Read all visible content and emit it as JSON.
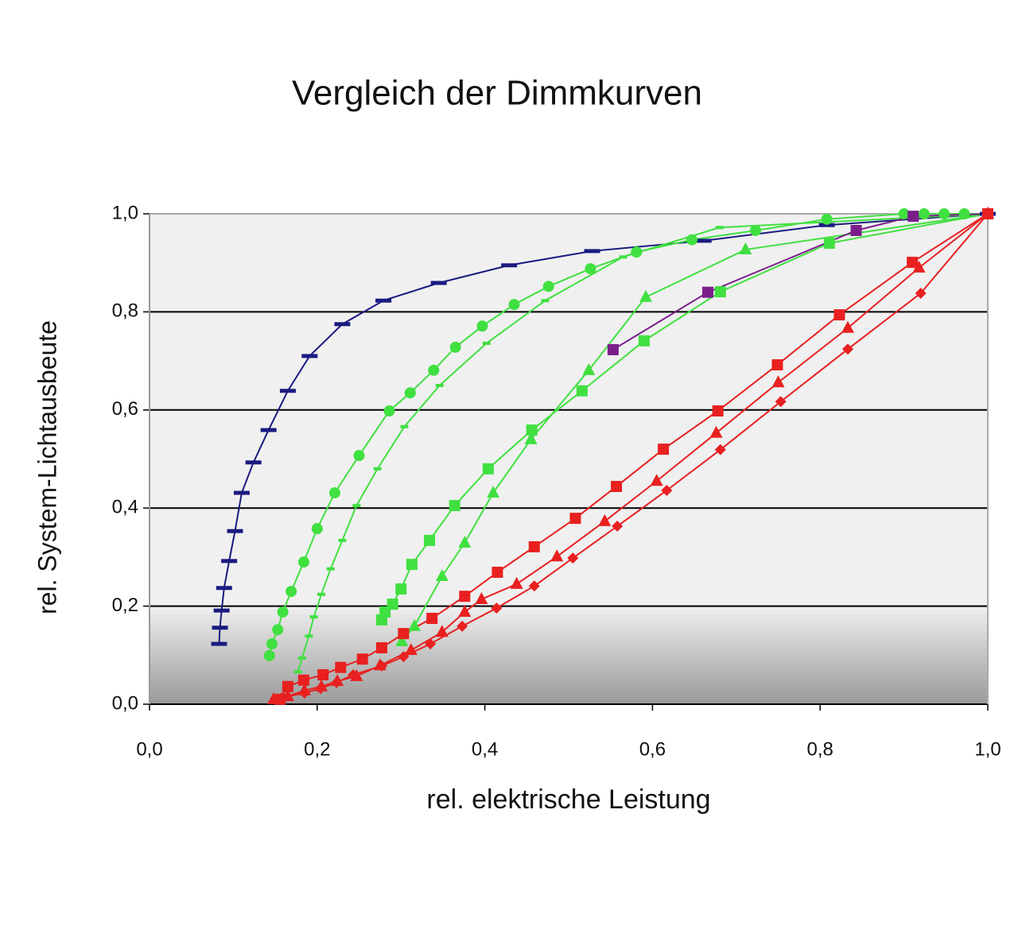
{
  "chart_data": {
    "type": "line",
    "title": "Vergleich der Dimmkurven",
    "x_label": "rel. elektrische Leistung",
    "y_label": "rel. System-Lichtausbeute",
    "xlim": [
      0,
      1
    ],
    "ylim": [
      0,
      1
    ],
    "xticks": [
      {
        "value": 0,
        "label": "0,0"
      },
      {
        "value": 0.2,
        "label": "0,2"
      },
      {
        "value": 0.4,
        "label": "0,4"
      },
      {
        "value": 0.6,
        "label": "0,6"
      },
      {
        "value": 0.8,
        "label": "0,8"
      },
      {
        "value": 1,
        "label": "1,0"
      }
    ],
    "yticks": [
      {
        "value": 0,
        "label": "0,0"
      },
      {
        "value": 0.2,
        "label": "0,2"
      },
      {
        "value": 0.4,
        "label": "0,4"
      },
      {
        "value": 0.6,
        "label": "0,6"
      },
      {
        "value": 0.8,
        "label": "0,8"
      },
      {
        "value": 1,
        "label": "1,0"
      }
    ],
    "grid": true,
    "series": [
      {
        "color": "#1a1a80",
        "marker": "dash",
        "x": [
          0.083,
          0.084,
          0.086,
          0.089,
          0.095,
          0.102,
          0.11,
          0.124,
          0.142,
          0.165,
          0.191,
          0.23,
          0.279,
          0.345,
          0.429,
          0.528,
          0.661,
          0.808,
          1.0
        ],
        "values": [
          0.123,
          0.156,
          0.191,
          0.237,
          0.292,
          0.353,
          0.431,
          0.493,
          0.559,
          0.639,
          0.71,
          0.775,
          0.823,
          0.859,
          0.895,
          0.924,
          0.945,
          0.977,
          1.0
        ]
      },
      {
        "color": "#40e040",
        "marker": "circle",
        "x": [
          0.143,
          0.146,
          0.153,
          0.159,
          0.169,
          0.184,
          0.2,
          0.221,
          0.25,
          0.286,
          0.311,
          0.339,
          0.365,
          0.397,
          0.435,
          0.476,
          0.526,
          0.581,
          0.647,
          0.723,
          0.808,
          0.9,
          0.924,
          0.948,
          0.972,
          1.0
        ],
        "values": [
          0.099,
          0.123,
          0.152,
          0.188,
          0.23,
          0.29,
          0.358,
          0.431,
          0.507,
          0.598,
          0.635,
          0.681,
          0.728,
          0.771,
          0.815,
          0.852,
          0.888,
          0.922,
          0.947,
          0.966,
          0.989,
          1.0,
          1.0,
          1.0,
          1.0,
          1.0
        ]
      },
      {
        "color": "#40e040",
        "marker": "smalldash",
        "x": [
          0.177,
          0.182,
          0.19,
          0.196,
          0.205,
          0.216,
          0.23,
          0.247,
          0.272,
          0.304,
          0.346,
          0.402,
          0.472,
          0.565,
          0.68,
          1.0
        ],
        "values": [
          0.066,
          0.094,
          0.139,
          0.178,
          0.224,
          0.276,
          0.334,
          0.405,
          0.48,
          0.566,
          0.65,
          0.736,
          0.823,
          0.912,
          0.972,
          1.0
        ]
      },
      {
        "color": "#40e040",
        "marker": "square",
        "x": [
          0.277,
          0.281,
          0.29,
          0.3,
          0.313,
          0.334,
          0.364,
          0.404,
          0.456,
          0.516,
          0.59,
          0.681,
          0.811,
          1.0
        ],
        "values": [
          0.172,
          0.188,
          0.204,
          0.235,
          0.285,
          0.334,
          0.405,
          0.48,
          0.559,
          0.639,
          0.741,
          0.841,
          0.94,
          1.0
        ]
      },
      {
        "color": "#40e040",
        "marker": "triangle",
        "x": [
          0.301,
          0.316,
          0.349,
          0.376,
          0.41,
          0.455,
          0.524,
          0.592,
          0.711,
          1.0
        ],
        "values": [
          0.128,
          0.159,
          0.261,
          0.329,
          0.431,
          0.54,
          0.681,
          0.83,
          0.927,
          1.0
        ]
      },
      {
        "color": "#7a1f8a",
        "marker": "square",
        "x": [
          0.553,
          0.666,
          0.843,
          0.911,
          1.0
        ],
        "values": [
          0.723,
          0.84,
          0.966,
          0.995,
          1.0
        ]
      },
      {
        "color": "#e82020",
        "marker": "square",
        "x": [
          0.156,
          0.165,
          0.184,
          0.207,
          0.228,
          0.254,
          0.277,
          0.303,
          0.337,
          0.376,
          0.415,
          0.459,
          0.508,
          0.557,
          0.613,
          0.678,
          0.749,
          0.823,
          0.91,
          1.0
        ],
        "values": [
          0.01,
          0.036,
          0.049,
          0.06,
          0.075,
          0.092,
          0.115,
          0.144,
          0.175,
          0.22,
          0.269,
          0.321,
          0.379,
          0.444,
          0.52,
          0.598,
          0.692,
          0.794,
          0.901,
          1.0
        ]
      },
      {
        "color": "#e82020",
        "marker": "triangle",
        "x": [
          0.148,
          0.165,
          0.185,
          0.205,
          0.224,
          0.247,
          0.275,
          0.312,
          0.349,
          0.376,
          0.396,
          0.438,
          0.486,
          0.543,
          0.605,
          0.676,
          0.75,
          0.833,
          0.918,
          1.0
        ],
        "values": [
          0.01,
          0.016,
          0.028,
          0.036,
          0.047,
          0.057,
          0.079,
          0.11,
          0.147,
          0.188,
          0.214,
          0.245,
          0.301,
          0.373,
          0.455,
          0.553,
          0.656,
          0.767,
          0.89,
          1.0
        ]
      },
      {
        "color": "#e82020",
        "marker": "diamond",
        "x": [
          0.158,
          0.185,
          0.204,
          0.223,
          0.243,
          0.277,
          0.303,
          0.335,
          0.373,
          0.414,
          0.459,
          0.505,
          0.558,
          0.617,
          0.681,
          0.753,
          0.833,
          0.92,
          1.0
        ],
        "values": [
          0.013,
          0.023,
          0.032,
          0.044,
          0.06,
          0.078,
          0.097,
          0.123,
          0.159,
          0.196,
          0.241,
          0.298,
          0.363,
          0.436,
          0.519,
          0.617,
          0.724,
          0.838,
          1.0
        ]
      }
    ]
  }
}
